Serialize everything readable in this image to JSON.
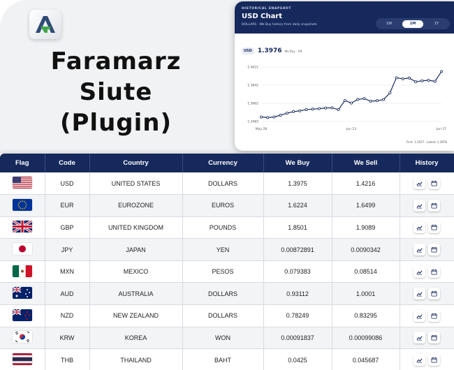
{
  "brand": {
    "logo_text": "A",
    "title_line1": "Faramarz Siute",
    "title_line2": "(Plugin)"
  },
  "chart_card": {
    "eyebrow": "HISTORICAL SNAPSHOT",
    "title": "USD Chart",
    "subtitle": "DOLLARS · We Buy history from daily snapshots",
    "ranges": [
      "1W",
      "1M",
      "1Y"
    ],
    "active_range": "1M",
    "badge": "USD",
    "current_value": "1.3976",
    "current_note": "We Buy · 1M",
    "footer": "First: 1.3527 · Latest: 1.3976"
  },
  "chart_data": {
    "type": "line",
    "x_tick_labels": [
      "May 28",
      "Jun 13",
      "Jun 27"
    ],
    "y_tick_labels": [
      "1.3483",
      "1.3662",
      "1.3842",
      "1.4021"
    ],
    "ylim": [
      1.3483,
      1.4021
    ],
    "grid": true,
    "series": [
      {
        "values": [
          1.3527,
          1.3522,
          1.3527,
          1.3545,
          1.3565,
          1.358,
          1.3588,
          1.36,
          1.3605,
          1.361,
          1.3616,
          1.3618,
          1.36,
          1.369,
          1.3665,
          1.37,
          1.371,
          1.3683,
          1.3688,
          1.37,
          1.3765,
          1.3915,
          1.3905,
          1.3912,
          1.3875,
          1.3885,
          1.389,
          1.388,
          1.3976
        ]
      }
    ]
  },
  "table": {
    "headers": [
      "Flag",
      "Code",
      "Country",
      "Currency",
      "We Buy",
      "We Sell",
      "History"
    ],
    "rows": [
      {
        "flag": "flag-us",
        "code": "USD",
        "country": "UNITED STATES",
        "currency": "DOLLARS",
        "buy": "1.3975",
        "sell": "1.4216"
      },
      {
        "flag": "flag-eu",
        "code": "EUR",
        "country": "EUROZONE",
        "currency": "EUROS",
        "buy": "1.6224",
        "sell": "1.6499"
      },
      {
        "flag": "flag-gb",
        "code": "GBP",
        "country": "UNITED KINGDOM",
        "currency": "POUNDS",
        "buy": "1.8501",
        "sell": "1.9089"
      },
      {
        "flag": "flag-jp",
        "code": "JPY",
        "country": "JAPAN",
        "currency": "YEN",
        "buy": "0.00872891",
        "sell": "0.0090342"
      },
      {
        "flag": "flag-mx",
        "code": "MXN",
        "country": "MEXICO",
        "currency": "PESOS",
        "buy": "0.079383",
        "sell": "0.08514"
      },
      {
        "flag": "flag-au",
        "code": "AUD",
        "country": "AUSTRALIA",
        "currency": "DOLLARS",
        "buy": "0.93112",
        "sell": "1.0001"
      },
      {
        "flag": "flag-nz",
        "code": "NZD",
        "country": "NEW ZEALAND",
        "currency": "DOLLARS",
        "buy": "0.78249",
        "sell": "0.83295"
      },
      {
        "flag": "flag-kr",
        "code": "KRW",
        "country": "KOREA",
        "currency": "WON",
        "buy": "0.00091837",
        "sell": "0.00099086"
      },
      {
        "flag": "flag-th",
        "code": "THB",
        "country": "THAILAND",
        "currency": "BAHT",
        "buy": "0.0425",
        "sell": "0.045687"
      }
    ],
    "history_icons": [
      "chart-line-icon",
      "calendar-icon"
    ]
  },
  "colors": {
    "navy": "#16295c",
    "logo_green": "#3fa64a",
    "logo_dark": "#2f4b74"
  }
}
